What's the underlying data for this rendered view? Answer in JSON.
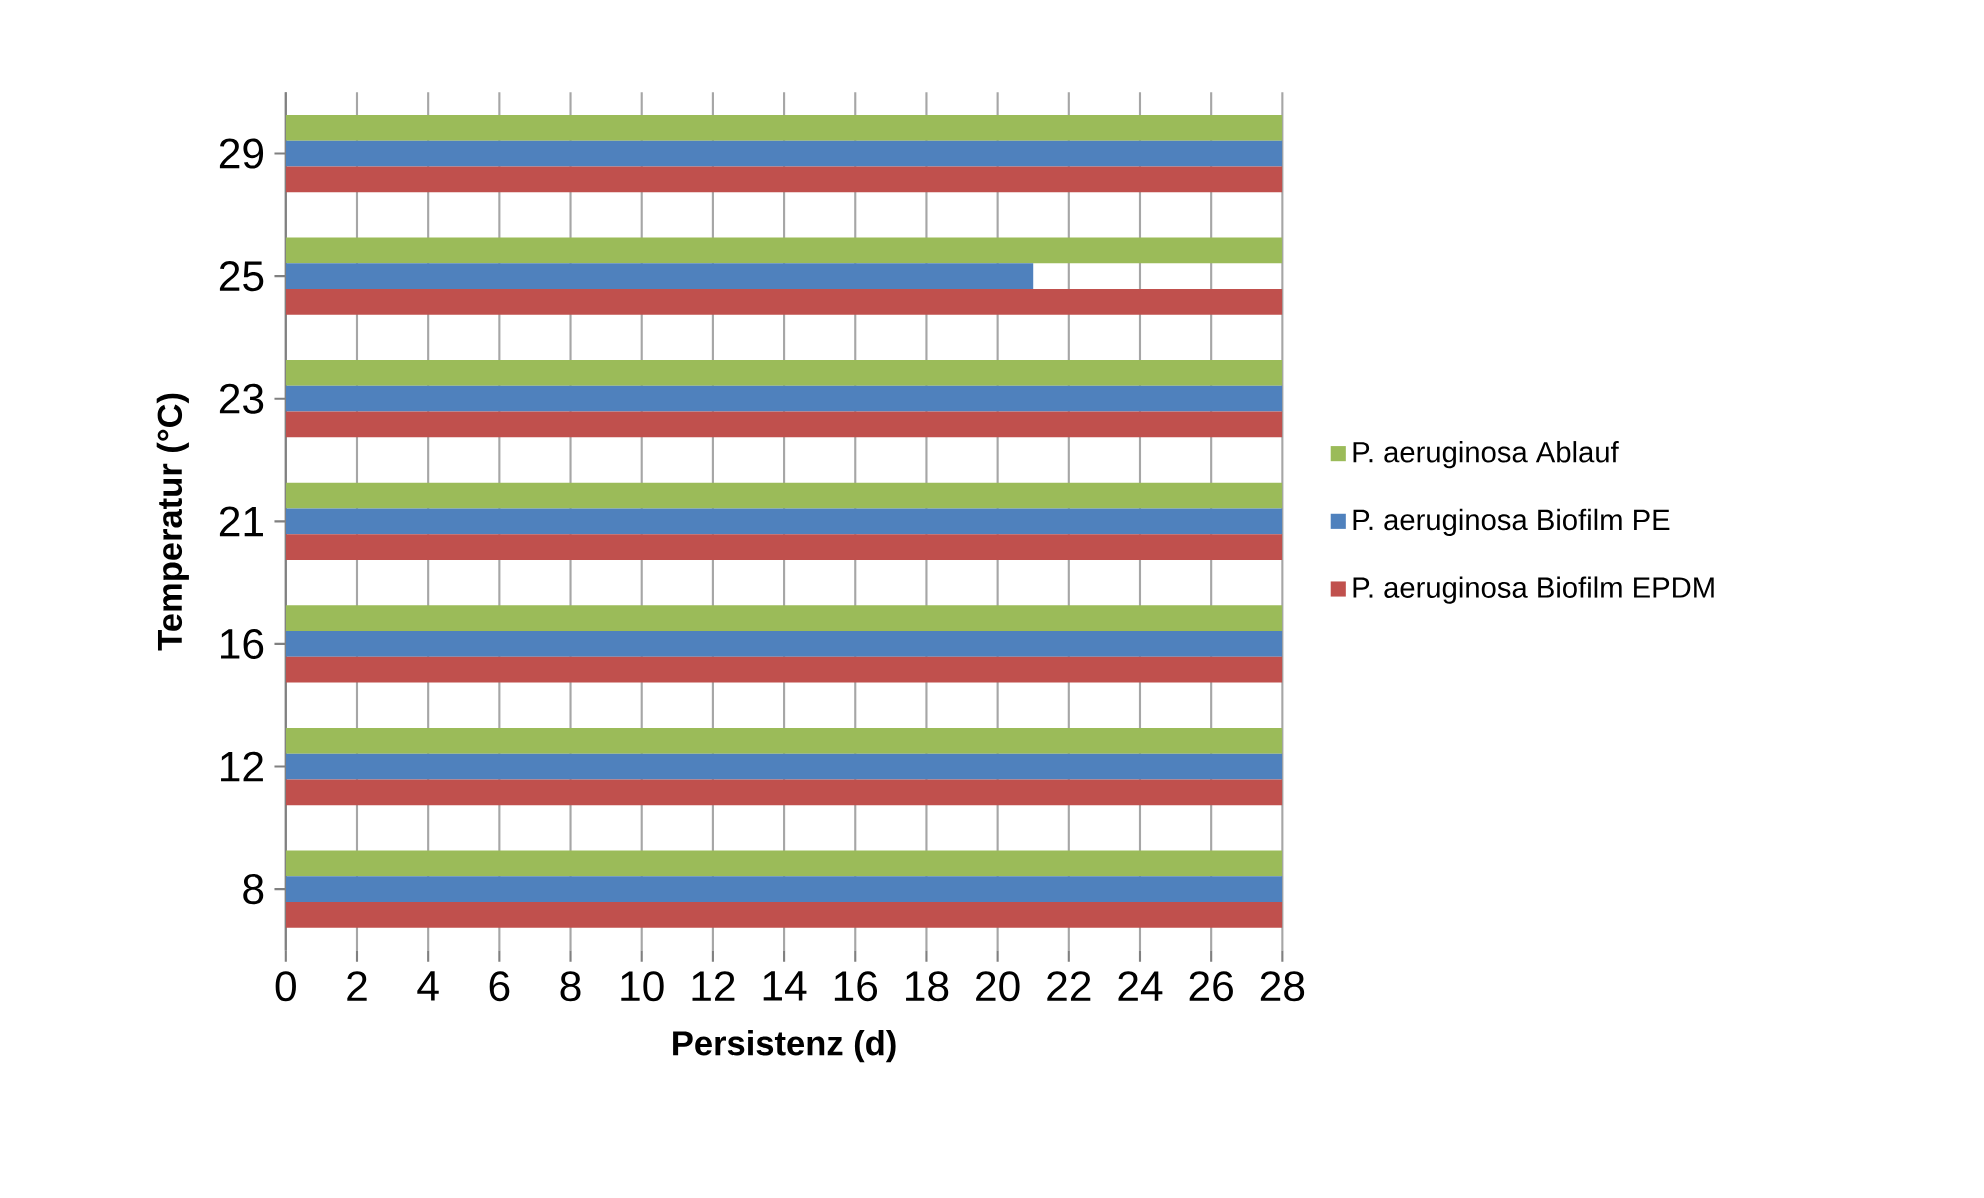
{
  "chart_data": {
    "type": "bar",
    "orientation": "horizontal",
    "categories": [
      "29",
      "25",
      "23",
      "21",
      "16",
      "12",
      "8"
    ],
    "series": [
      {
        "name": "P. aeruginosa Ablauf",
        "color": "#9bbb59",
        "values": [
          28,
          28,
          28,
          28,
          28,
          28,
          28
        ]
      },
      {
        "name": "P. aeruginosa Biofilm PE",
        "color": "#4f81bd",
        "values": [
          28,
          21,
          28,
          28,
          28,
          28,
          28
        ]
      },
      {
        "name": "P. aeruginosa Biofilm EPDM",
        "color": "#c0504d",
        "values": [
          28,
          28,
          28,
          28,
          28,
          28,
          28
        ]
      }
    ],
    "xlim": [
      0,
      28
    ],
    "xticks": [
      0,
      2,
      4,
      6,
      8,
      10,
      12,
      14,
      16,
      18,
      20,
      22,
      24,
      26,
      28
    ],
    "xlabel": "Persistenz (d)",
    "ylabel": "Temperatur (°C)",
    "grid": "x",
    "legend": "right"
  }
}
